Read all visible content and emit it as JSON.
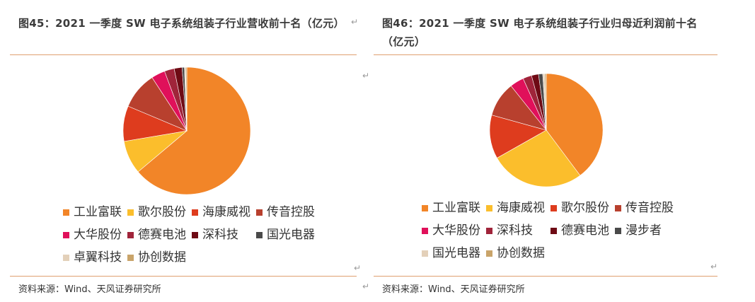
{
  "chart_data": [
    {
      "type": "pie",
      "title": "图45：2021 一季度 SW 电子系统组装子行业营收前十名（亿元）",
      "categories": [
        "工业富联",
        "歌尔股份",
        "海康威视",
        "传音控股",
        "大华股份",
        "德赛电池",
        "深科技",
        "国光电器",
        "卓翼科技",
        "协创数据"
      ],
      "values": [
        64.0,
        8.5,
        9.0,
        9.5,
        3.5,
        2.5,
        2.0,
        0.6,
        0.3,
        0.3
      ],
      "colors": [
        "#F28528",
        "#FBBE2C",
        "#DE3C1E",
        "#B8402E",
        "#E0105A",
        "#A0243A",
        "#6E0A14",
        "#4A4A4A",
        "#E3D0B9",
        "#C9A46A"
      ],
      "legend": [
        [
          "工业富联",
          "歌尔股份",
          "海康威视",
          "传音控股"
        ],
        [
          "大华股份",
          "德赛电池",
          "深科技",
          "国光电器"
        ],
        [
          "卓翼科技",
          "协创数据"
        ]
      ],
      "source": "资料来源：Wind、天风证券研究所"
    },
    {
      "type": "pie",
      "title": "图46：2021 一季度 SW 电子系统组装子行业归母近利润前十名（亿元）",
      "categories": [
        "工业富联",
        "海康威视",
        "歌尔股份",
        "传音控股",
        "大华股份",
        "深科技",
        "德赛电池",
        "漫步者",
        "国光电器",
        "协创数据"
      ],
      "values": [
        39.8,
        27.0,
        12.5,
        10.0,
        4.0,
        2.5,
        2.0,
        1.2,
        0.6,
        0.4
      ],
      "colors": [
        "#F28528",
        "#FBBE2C",
        "#DE3C1E",
        "#B8402E",
        "#E0105A",
        "#A0243A",
        "#6E0A14",
        "#4A4A4A",
        "#E3D0B9",
        "#C9A46A"
      ],
      "legend": [
        [
          "工业富联",
          "海康威视",
          "歌尔股份",
          "传音控股"
        ],
        [
          "大华股份",
          "深科技",
          "德赛电池",
          "漫步者"
        ],
        [
          "国光电器",
          "协创数据"
        ]
      ],
      "source": "资料来源：Wind、天风证券研究所"
    }
  ]
}
